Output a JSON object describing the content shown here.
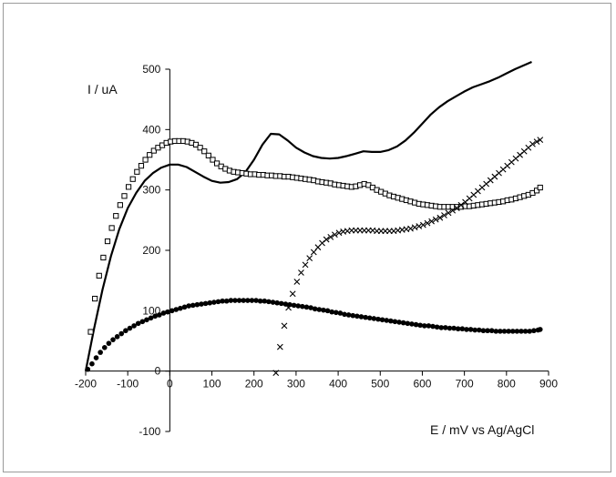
{
  "chart_data": {
    "type": "scatter",
    "title": "",
    "xlabel": "E / mV vs Ag/AgCl",
    "ylabel": "I / uA",
    "xlim": [
      -200,
      900
    ],
    "ylim": [
      -100,
      500
    ],
    "xticks": [
      -200,
      -100,
      0,
      100,
      200,
      300,
      400,
      500,
      600,
      700,
      800,
      900
    ],
    "yticks": [
      -100,
      0,
      100,
      200,
      300,
      400,
      500
    ],
    "x_tick_labels": [
      "-200",
      "-100",
      "0",
      "100",
      "200",
      "300",
      "400",
      "500",
      "600",
      "700",
      "800",
      "900"
    ],
    "y_tick_labels": [
      "-100",
      "0",
      "100",
      "200",
      "300",
      "400",
      "500"
    ],
    "grid": false,
    "legend": "none",
    "series": [
      {
        "marker": "line",
        "color": "#000000",
        "x": [
          -200,
          -180,
          -160,
          -140,
          -120,
          -100,
          -80,
          -60,
          -40,
          -20,
          0,
          20,
          40,
          60,
          80,
          100,
          120,
          140,
          160,
          180,
          200,
          220,
          240,
          260,
          280,
          300,
          320,
          340,
          360,
          380,
          400,
          420,
          440,
          460,
          480,
          500,
          520,
          540,
          560,
          580,
          600,
          620,
          640,
          660,
          680,
          700,
          720,
          740,
          760,
          780,
          800,
          820,
          840,
          860
        ],
        "y": [
          0,
          70,
          135,
          190,
          235,
          270,
          295,
          315,
          328,
          337,
          342,
          342,
          338,
          330,
          322,
          315,
          312,
          313,
          318,
          330,
          350,
          375,
          393,
          392,
          382,
          370,
          362,
          356,
          353,
          352,
          353,
          356,
          360,
          364,
          363,
          363,
          366,
          372,
          382,
          395,
          410,
          425,
          437,
          447,
          455,
          463,
          470,
          475,
          480,
          486,
          493,
          500,
          506,
          512
        ]
      },
      {
        "marker": "square",
        "color": "#000000",
        "x": [
          -188,
          -178,
          -168,
          -158,
          -148,
          -138,
          -128,
          -118,
          -108,
          -98,
          -88,
          -78,
          -68,
          -58,
          -48,
          -38,
          -28,
          -18,
          -8,
          2,
          12,
          22,
          32,
          42,
          52,
          62,
          72,
          82,
          92,
          102,
          112,
          122,
          132,
          142,
          152,
          162,
          172,
          182,
          192,
          202,
          212,
          222,
          232,
          242,
          252,
          262,
          272,
          282,
          292,
          302,
          312,
          322,
          332,
          342,
          352,
          362,
          372,
          382,
          392,
          402,
          412,
          422,
          432,
          442,
          452,
          462,
          472,
          482,
          492,
          502,
          512,
          522,
          532,
          542,
          552,
          562,
          572,
          582,
          592,
          602,
          612,
          622,
          632,
          642,
          652,
          662,
          672,
          682,
          692,
          702,
          712,
          722,
          732,
          742,
          752,
          762,
          772,
          782,
          792,
          802,
          812,
          822,
          832,
          842,
          852,
          862,
          872,
          880
        ],
        "y": [
          65,
          120,
          158,
          188,
          215,
          237,
          257,
          275,
          290,
          305,
          318,
          330,
          340,
          350,
          358,
          365,
          370,
          374,
          378,
          380,
          381,
          381,
          381,
          380,
          378,
          375,
          370,
          364,
          357,
          350,
          344,
          339,
          335,
          332,
          330,
          329,
          328,
          327,
          326,
          326,
          325,
          325,
          324,
          324,
          323,
          323,
          322,
          322,
          321,
          320,
          319,
          318,
          317,
          316,
          314,
          313,
          312,
          311,
          309,
          308,
          307,
          306,
          305,
          306,
          308,
          310,
          308,
          304,
          300,
          297,
          294,
          291,
          289,
          287,
          285,
          283,
          281,
          279,
          277,
          276,
          275,
          274,
          273,
          272,
          272,
          272,
          272,
          272,
          272,
          273,
          273,
          274,
          275,
          276,
          277,
          278,
          279,
          280,
          281,
          283,
          284,
          286,
          288,
          290,
          292,
          295,
          299,
          304
        ]
      },
      {
        "marker": "filled-circle",
        "color": "#000000",
        "x": [
          -195,
          -185,
          -175,
          -165,
          -155,
          -145,
          -135,
          -125,
          -115,
          -105,
          -95,
          -85,
          -75,
          -65,
          -55,
          -45,
          -35,
          -25,
          -15,
          -5,
          5,
          15,
          25,
          35,
          45,
          55,
          65,
          75,
          85,
          95,
          105,
          115,
          125,
          135,
          145,
          155,
          165,
          175,
          185,
          195,
          205,
          215,
          225,
          235,
          245,
          255,
          265,
          275,
          285,
          295,
          305,
          315,
          325,
          335,
          345,
          355,
          365,
          375,
          385,
          395,
          405,
          415,
          425,
          435,
          445,
          455,
          465,
          475,
          485,
          495,
          505,
          515,
          525,
          535,
          545,
          555,
          565,
          575,
          585,
          595,
          605,
          615,
          625,
          635,
          645,
          655,
          665,
          675,
          685,
          695,
          705,
          715,
          725,
          735,
          745,
          755,
          765,
          775,
          785,
          795,
          805,
          815,
          825,
          835,
          845,
          855,
          865,
          875,
          880
        ],
        "y": [
          3,
          12,
          22,
          31,
          39,
          46,
          52,
          57,
          62,
          67,
          71,
          75,
          79,
          82,
          85,
          88,
          91,
          93,
          96,
          98,
          100,
          102,
          104,
          106,
          108,
          109,
          110,
          111,
          112,
          113,
          114,
          115,
          116,
          116,
          117,
          117,
          117,
          117,
          117,
          117,
          117,
          116,
          116,
          115,
          114,
          113,
          112,
          111,
          110,
          109,
          108,
          107,
          106,
          105,
          103,
          102,
          101,
          100,
          98,
          97,
          96,
          94,
          93,
          92,
          91,
          90,
          89,
          88,
          87,
          86,
          85,
          84,
          83,
          82,
          81,
          80,
          79,
          78,
          77,
          76,
          75,
          75,
          74,
          73,
          72,
          72,
          71,
          71,
          70,
          70,
          69,
          69,
          68,
          68,
          67,
          67,
          67,
          66,
          66,
          66,
          66,
          66,
          66,
          66,
          66,
          66,
          67,
          68,
          69
        ]
      },
      {
        "marker": "cross",
        "color": "#000000",
        "x": [
          252,
          262,
          272,
          282,
          292,
          302,
          312,
          322,
          332,
          342,
          352,
          362,
          372,
          382,
          392,
          402,
          412,
          422,
          432,
          442,
          452,
          462,
          472,
          482,
          492,
          502,
          512,
          522,
          532,
          542,
          552,
          562,
          572,
          582,
          592,
          602,
          612,
          622,
          632,
          642,
          652,
          662,
          672,
          682,
          692,
          702,
          712,
          722,
          732,
          742,
          752,
          762,
          772,
          782,
          792,
          802,
          812,
          822,
          832,
          842,
          852,
          862,
          872,
          880
        ],
        "y": [
          -3,
          40,
          75,
          105,
          128,
          148,
          163,
          176,
          187,
          197,
          205,
          212,
          218,
          222,
          226,
          229,
          231,
          232,
          233,
          233,
          233,
          233,
          233,
          233,
          232,
          232,
          232,
          232,
          232,
          233,
          234,
          235,
          236,
          238,
          240,
          242,
          245,
          248,
          251,
          254,
          258,
          262,
          266,
          270,
          275,
          280,
          286,
          292,
          298,
          304,
          310,
          316,
          322,
          328,
          334,
          340,
          346,
          352,
          358,
          364,
          370,
          376,
          380,
          383
        ]
      }
    ]
  }
}
